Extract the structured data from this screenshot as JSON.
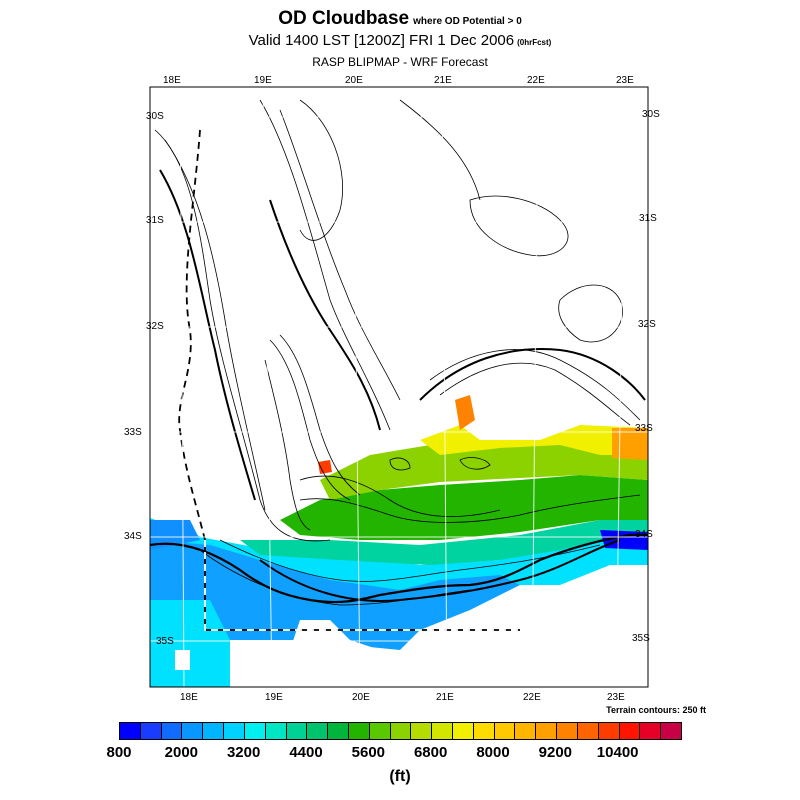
{
  "title": {
    "main": "OD Cloudbase",
    "main_sub": "where OD Potential > 0",
    "valid": "Valid 1400 LST [1200Z] FRI 1 Dec 2006",
    "valid_sub": "(0hrFcst)",
    "model": "RASP BLIPMAP - WRF Forecast"
  },
  "axes": {
    "lon_top": [
      "18E",
      "19E",
      "20E",
      "21E",
      "22E",
      "23E"
    ],
    "lon_bottom": [
      "18E",
      "19E",
      "20E",
      "21E",
      "22E",
      "23E"
    ],
    "lat_left": [
      "30S",
      "31S",
      "32S",
      "33S",
      "34S",
      "35S"
    ],
    "lat_right": [
      "30S",
      "31S",
      "32S",
      "33S",
      "34S",
      "35S"
    ]
  },
  "terrain_note": "Terrain contours: 250 ft",
  "colorbar": {
    "colors": [
      "#0000ff",
      "#1a3cff",
      "#0f6cff",
      "#0a96ff",
      "#00b4ff",
      "#00d2ff",
      "#00f0f0",
      "#00e6c3",
      "#00d296",
      "#00c36e",
      "#00b43c",
      "#23b400",
      "#5ac800",
      "#8cd200",
      "#b4dc00",
      "#d2e600",
      "#f0f000",
      "#ffdc00",
      "#ffc800",
      "#ffb400",
      "#ffa000",
      "#ff8200",
      "#ff6400",
      "#ff3c00",
      "#ff1400",
      "#e60028",
      "#c80046"
    ],
    "tick_labels": [
      "800",
      "2000",
      "3200",
      "4400",
      "5600",
      "6800",
      "8000",
      "9200",
      "10400"
    ],
    "units": "(ft)"
  }
}
